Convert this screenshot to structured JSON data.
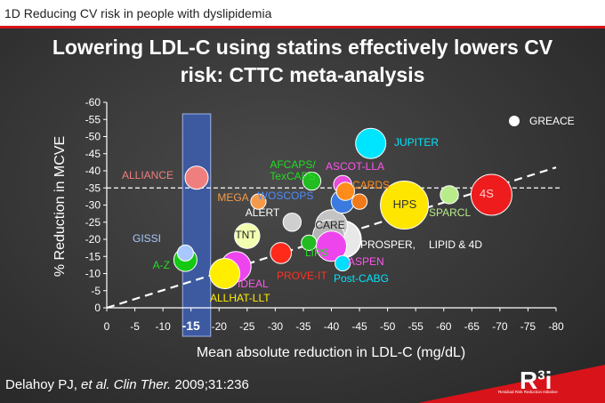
{
  "header": {
    "section_title": "1D Reducing CV risk in people with dyslipidemia",
    "title_line1": "Lowering LDL-C using statins effectively lowers CV",
    "title_line2": "risk: CTTC meta-analysis"
  },
  "citation": {
    "author": "Delahoy PJ, ",
    "etal": "et al.",
    "journal": "Clin Ther.",
    "rest": " 2009;31:236"
  },
  "logo": {
    "letter": "R",
    "sup": "3",
    "suffix": "i",
    "tagline": "Residual Risk Reduction Initiative"
  },
  "colors": {
    "background": "#3a3a3a",
    "header_bar": "#ffffff",
    "accent_red": "#d8141a",
    "highlight_band": "#3d5aa0"
  },
  "chart_data": {
    "type": "scatter",
    "xlabel": "Mean absolute reduction in LDL-C (mg/dL)",
    "ylabel": "% Reduction in MCVE",
    "xlim": [
      0,
      -80
    ],
    "ylim": [
      0,
      -60
    ],
    "x_ticks": [
      "0",
      "-5",
      "-10",
      "-15",
      "-20",
      "-25",
      "-30",
      "-35",
      "-40",
      "-45",
      "-50",
      "-55",
      "-60",
      "-65",
      "-70",
      "-75",
      "-80"
    ],
    "y_ticks": [
      "0",
      "-5",
      "-10",
      "-15",
      "-20",
      "-25",
      "-30",
      "-35",
      "-40",
      "-45",
      "-50",
      "-55",
      "-60"
    ],
    "highlight_x_tick": "-15",
    "highlight_band_x": [
      -13.5,
      -18.5
    ],
    "reference_line_y": -35,
    "trend_line": {
      "from": [
        0,
        0
      ],
      "to": [
        -80,
        -41
      ],
      "style": "dashed"
    },
    "grid": false,
    "legend": {
      "label": "GREACE",
      "color": "#ffffff",
      "position": "top-right"
    },
    "points": [
      {
        "name": "JUPITER",
        "x": -47,
        "y": -48,
        "size": 3,
        "color": "#00e5ff",
        "label_color": "#00e5ff"
      },
      {
        "name": "GREACE",
        "x": -42,
        "y": -20,
        "size": 4,
        "color": "#ffffff",
        "label_color": "#ffffff"
      },
      {
        "name": "ALLIANCE",
        "x": -16,
        "y": -38,
        "size": 2,
        "color": "#ef7f7f",
        "label_color": "#ef7f7f"
      },
      {
        "name": "AFCAPS/ TexCAPS",
        "x": -36.5,
        "y": -37,
        "size": 1.3,
        "color": "#22bb22",
        "label_color": "#22dd22"
      },
      {
        "name": "ASCOT-LLA",
        "x": -42,
        "y": -36,
        "size": 1.3,
        "color": "#e84adb",
        "label_color": "#ff55ee"
      },
      {
        "name": "CARDS",
        "x": -42.5,
        "y": -34,
        "size": 1.3,
        "color": "#ff8c1a",
        "label_color": "#ff8c1a"
      },
      {
        "name": "WOSCOPS",
        "x": -42,
        "y": -31,
        "size": 2,
        "color": "#3b7be0",
        "label_color": "#4c8cff"
      },
      {
        "name": "MEGA",
        "x": -27,
        "y": -31,
        "size": 0.9,
        "color": "#f49b4b",
        "label_color": "#f49b4b"
      },
      {
        "name": "",
        "x": -45,
        "y": -31,
        "size": 0.9,
        "color": "#f07a1a"
      },
      {
        "name": "HPS",
        "x": -53,
        "y": -30,
        "size": 5.5,
        "color": "#ffe600",
        "label_color": "#333333"
      },
      {
        "name": "SPARCL",
        "x": -61,
        "y": -33,
        "size": 1.3,
        "color": "#b8ec8a",
        "label_color": "#b8ec8a"
      },
      {
        "name": "4S",
        "x": -68.5,
        "y": -33,
        "size": 4.5,
        "color": "#ee1c1c",
        "label_color": "#ffd0d0"
      },
      {
        "name": "ALERT",
        "x": -33,
        "y": -25,
        "size": 1.3,
        "color": "#cfcfcf",
        "label_color": "#ffffff"
      },
      {
        "name": "CARE",
        "x": -40,
        "y": -24,
        "size": 3.2,
        "color": "#c4c4c4",
        "label_color": "#222222"
      },
      {
        "name": "PROSPER,",
        "x": -39.5,
        "y": -21,
        "size": 3.2,
        "color": "#b5b5b5",
        "label_color": "#ffffff"
      },
      {
        "name": "LIPID & 4D",
        "x": -42,
        "y": -20,
        "size": 3.8,
        "color": "#e8e8e8",
        "label_color": "#ffffff"
      },
      {
        "name": "TNT",
        "x": -25,
        "y": -21,
        "size": 2.3,
        "color": "#f2ffb0",
        "label_color": "#222222"
      },
      {
        "name": "LIPS",
        "x": -36,
        "y": -19,
        "size": 0.9,
        "color": "#22bb22",
        "label_color": "#22dd22"
      },
      {
        "name": "ASPEN",
        "x": -40,
        "y": -18,
        "size": 3,
        "color": "#ee44ee",
        "label_color": "#ff55ee"
      },
      {
        "name": "PROVE-IT",
        "x": -31,
        "y": -16,
        "size": 1.7,
        "color": "#ff2a1a",
        "label_color": "#ff3322"
      },
      {
        "name": "Post-CABG",
        "x": -42,
        "y": -13,
        "size": 0.9,
        "color": "#00ddff",
        "label_color": "#00e5ff"
      },
      {
        "name": "GISSI",
        "x": -14,
        "y": -16,
        "size": 1,
        "color": "#a8c8ff",
        "label_color": "#a8c8ff"
      },
      {
        "name": "A-Z",
        "x": -14,
        "y": -14,
        "size": 2,
        "color": "#14c814",
        "label_color": "#22dd22"
      },
      {
        "name": "IDEAL",
        "x": -23,
        "y": -12,
        "size": 3,
        "color": "#ee44ee",
        "label_color": "#ff55ee"
      },
      {
        "name": "ALLHAT-LLT",
        "x": -21,
        "y": -10,
        "size": 3,
        "color": "#ffee00",
        "label_color": "#ffee00"
      }
    ]
  }
}
